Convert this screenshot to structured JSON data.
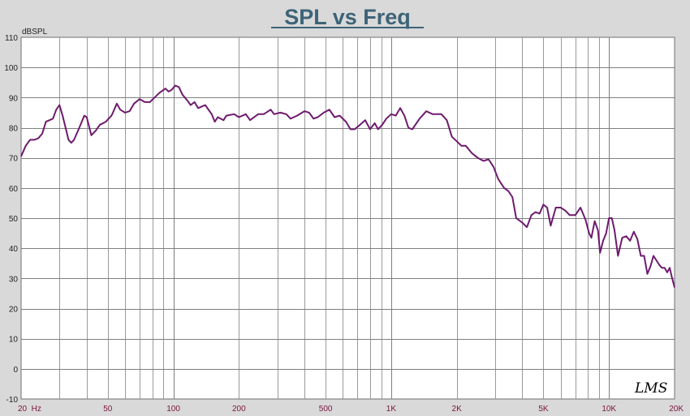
{
  "watermark": "LMS",
  "chart_data": {
    "type": "line",
    "title": "SPL vs Freq",
    "ylabel": "dBSPL",
    "xlabel": "",
    "x_scale": "log",
    "xlim": [
      20,
      20000
    ],
    "ylim": [
      -10,
      110
    ],
    "grid": true,
    "x_tick_labels": [
      {
        "value": 20,
        "label": "20  Hz"
      },
      {
        "value": 50,
        "label": "50"
      },
      {
        "value": 100,
        "label": "100"
      },
      {
        "value": 200,
        "label": "200"
      },
      {
        "value": 500,
        "label": "500"
      },
      {
        "value": 1000,
        "label": "1K"
      },
      {
        "value": 2000,
        "label": "2K"
      },
      {
        "value": 5000,
        "label": "5K"
      },
      {
        "value": 10000,
        "label": "10K"
      },
      {
        "value": 20000,
        "label": "20K"
      }
    ],
    "y_ticks": [
      -10,
      0,
      10,
      20,
      30,
      40,
      50,
      60,
      70,
      80,
      90,
      100,
      110
    ],
    "series": [
      {
        "color": "#6e1a6e",
        "points": [
          [
            20,
            70.5
          ],
          [
            21,
            74
          ],
          [
            22,
            76
          ],
          [
            23,
            76
          ],
          [
            24,
            76.5
          ],
          [
            25,
            78
          ],
          [
            26,
            82
          ],
          [
            27,
            82.5
          ],
          [
            28,
            83
          ],
          [
            29,
            86
          ],
          [
            30,
            87.5
          ],
          [
            31,
            84
          ],
          [
            32,
            80
          ],
          [
            33,
            76
          ],
          [
            34,
            75
          ],
          [
            35,
            76
          ],
          [
            37,
            80
          ],
          [
            39,
            84
          ],
          [
            40,
            83.5
          ],
          [
            42,
            77.5
          ],
          [
            44,
            79
          ],
          [
            46,
            81
          ],
          [
            49,
            82
          ],
          [
            52,
            84
          ],
          [
            55,
            88
          ],
          [
            57,
            86
          ],
          [
            60,
            85
          ],
          [
            63,
            85.5
          ],
          [
            66,
            88
          ],
          [
            70,
            89.5
          ],
          [
            74,
            88.5
          ],
          [
            78,
            88.5
          ],
          [
            82,
            90
          ],
          [
            86,
            91.5
          ],
          [
            92,
            93
          ],
          [
            95,
            92
          ],
          [
            98,
            92.5
          ],
          [
            102,
            94
          ],
          [
            106,
            93.5
          ],
          [
            110,
            91
          ],
          [
            116,
            89
          ],
          [
            120,
            87.5
          ],
          [
            125,
            88.5
          ],
          [
            130,
            86.5
          ],
          [
            140,
            87.5
          ],
          [
            150,
            84.5
          ],
          [
            155,
            82
          ],
          [
            160,
            83.5
          ],
          [
            170,
            82.5
          ],
          [
            175,
            84
          ],
          [
            190,
            84.5
          ],
          [
            200,
            83.5
          ],
          [
            215,
            84.5
          ],
          [
            225,
            82.5
          ],
          [
            245,
            84.5
          ],
          [
            260,
            84.5
          ],
          [
            280,
            86
          ],
          [
            290,
            84.5
          ],
          [
            310,
            85
          ],
          [
            330,
            84.5
          ],
          [
            345,
            83
          ],
          [
            370,
            84
          ],
          [
            400,
            85.5
          ],
          [
            420,
            85
          ],
          [
            440,
            83
          ],
          [
            460,
            83.5
          ],
          [
            490,
            85
          ],
          [
            520,
            86
          ],
          [
            550,
            83.5
          ],
          [
            580,
            84
          ],
          [
            620,
            82
          ],
          [
            650,
            79.5
          ],
          [
            680,
            79.5
          ],
          [
            720,
            81
          ],
          [
            760,
            82.5
          ],
          [
            800,
            79.5
          ],
          [
            840,
            81.5
          ],
          [
            870,
            79.5
          ],
          [
            910,
            81
          ],
          [
            950,
            83
          ],
          [
            1000,
            84.5
          ],
          [
            1050,
            84
          ],
          [
            1100,
            86.5
          ],
          [
            1150,
            84
          ],
          [
            1200,
            80
          ],
          [
            1250,
            79.5
          ],
          [
            1350,
            83
          ],
          [
            1450,
            85.5
          ],
          [
            1550,
            84.5
          ],
          [
            1700,
            84.5
          ],
          [
            1800,
            82.5
          ],
          [
            1900,
            77
          ],
          [
            2000,
            75.5
          ],
          [
            2100,
            74
          ],
          [
            2200,
            74
          ],
          [
            2350,
            71.5
          ],
          [
            2500,
            70
          ],
          [
            2650,
            69
          ],
          [
            2800,
            69.5
          ],
          [
            2950,
            67
          ],
          [
            3100,
            63
          ],
          [
            3300,
            60
          ],
          [
            3450,
            59
          ],
          [
            3600,
            57
          ],
          [
            3750,
            50
          ],
          [
            4000,
            48.5
          ],
          [
            4200,
            47
          ],
          [
            4400,
            51
          ],
          [
            4600,
            52
          ],
          [
            4800,
            51.5
          ],
          [
            5000,
            54.5
          ],
          [
            5200,
            53.5
          ],
          [
            5400,
            47.5
          ],
          [
            5700,
            53.5
          ],
          [
            6000,
            53.5
          ],
          [
            6300,
            52.5
          ],
          [
            6600,
            51
          ],
          [
            7000,
            51
          ],
          [
            7400,
            53.5
          ],
          [
            7800,
            49.5
          ],
          [
            8100,
            45
          ],
          [
            8300,
            43.5
          ],
          [
            8600,
            49
          ],
          [
            8900,
            46
          ],
          [
            9100,
            38.5
          ],
          [
            9400,
            42.5
          ],
          [
            9700,
            45
          ],
          [
            10000,
            50
          ],
          [
            10300,
            50
          ],
          [
            10600,
            46
          ],
          [
            11000,
            37.5
          ],
          [
            11500,
            43.5
          ],
          [
            12000,
            44
          ],
          [
            12500,
            42.5
          ],
          [
            13000,
            45.5
          ],
          [
            13500,
            43
          ],
          [
            14000,
            37.5
          ],
          [
            14500,
            37.5
          ],
          [
            15000,
            31.5
          ],
          [
            15500,
            34
          ],
          [
            16000,
            37.5
          ],
          [
            16500,
            36
          ],
          [
            17000,
            34.5
          ],
          [
            17500,
            33.5
          ],
          [
            18000,
            33.5
          ],
          [
            18500,
            32
          ],
          [
            19000,
            33.5
          ],
          [
            19500,
            30
          ],
          [
            20000,
            27
          ]
        ]
      }
    ]
  }
}
